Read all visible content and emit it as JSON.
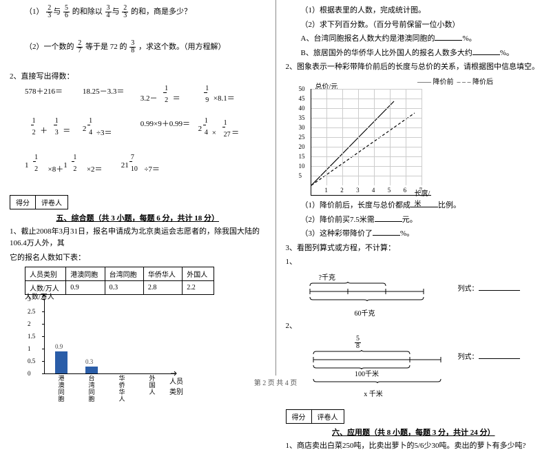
{
  "left": {
    "q1": {
      "pre": "（1）",
      "a": "2",
      "b": "3",
      "c": "5",
      "d": "6",
      "mid": "的和除以",
      "e": "3",
      "f": "4",
      "g": "2",
      "h": "3",
      "post": "的和，商是多少？"
    },
    "q2": {
      "pre": "（2）一个数的",
      "a": "2",
      "b": "7",
      "mid": "等于是 72 的",
      "c": "3",
      "d": "8",
      "post": "，求这个数。（用方程解）"
    },
    "calc_title": "2、直接写出得数：",
    "calc1": [
      "578＋216＝",
      "18.25－3.3＝",
      "3.2－",
      "×8.1＝"
    ],
    "calc1_frac1": {
      "n": "1",
      "d": "2"
    },
    "calc1_frac2": {
      "n": "1",
      "d": "9"
    },
    "calc2_a": {
      "n": "1",
      "d": "2"
    },
    "calc2_b": {
      "n": "1",
      "d": "3"
    },
    "calc2_c": {
      "w": "2",
      "n": "1",
      "d": "4"
    },
    "calc2_d": "0.99×9＋0.99＝",
    "calc2_e": {
      "w": "2",
      "n": "1",
      "d": "4"
    },
    "calc2_f": {
      "n": "1",
      "d": "27"
    },
    "calc3_a": {
      "w": "1",
      "n": "1",
      "d": "2"
    },
    "calc3_b": {
      "w": "1",
      "n": "1",
      "d": "2"
    },
    "calc3_c": {
      "w": "21",
      "n": "7",
      "d": "10"
    },
    "score": [
      "得分",
      "评卷人"
    ],
    "sect5": "五、综合题（共 3 小题，每题 6 分，共计 18 分）",
    "p1a": "1、截止2008年3月31日，报名申请成为北京奥运会志愿者的，除我国大陆的106.4万人外，其",
    "p1b": "它的报名人数如下表：",
    "table": {
      "h": [
        "人员类别",
        "港澳同胞",
        "台湾同胞",
        "华侨华人",
        "外国人"
      ],
      "r": [
        "人数/万人",
        "0.9",
        "0.3",
        "2.8",
        "2.2"
      ]
    },
    "chart": {
      "ylabel": "人数/万人",
      "xlabel": "人员类别",
      "yticks": [
        "0",
        "0.5",
        "1",
        "1.5",
        "2",
        "2.5",
        "3"
      ],
      "cats": [
        "港澳同胞",
        "台湾同胞",
        "华侨华人",
        "外国人"
      ],
      "vals": [
        0.9,
        0.3,
        0,
        0
      ],
      "bar_color": "#2a5da8",
      "val_labels": [
        "0.9",
        "0.3"
      ]
    }
  },
  "right": {
    "r1": "（1）根据表里的人数，完成统计图。",
    "r2": "（2）求下列百分数。（百分号前保留一位小数）",
    "rA": "A、台湾同胞报名人数大约是港澳同胞的",
    "rB": "B、旅居国外的华侨华人比外国人的报名人数多大约",
    "pct": "%。",
    "r3": "2、图象表示一种彩带降价前后的长度与总价的关系，请根据图中信息填空。",
    "legend": [
      "降价前",
      "降价后"
    ],
    "ylab": "总价/元",
    "xlab": "长度/米",
    "yticks": [
      "5",
      "10",
      "15",
      "20",
      "25",
      "30",
      "35",
      "40",
      "45",
      "50"
    ],
    "xticks": [
      "1",
      "2",
      "3",
      "4",
      "5",
      "6",
      "7"
    ],
    "f1": "（1）降价前后，长度与总价都成",
    "f1b": "比例。",
    "f2": "（2）降价前买7.5米需",
    "f2b": "元。",
    "f3": "（3）这种彩带降价了",
    "f3b": "%。",
    "q3": "3、看图列算式或方程，不计算：",
    "d1_top": "?千克",
    "d1_bot": "60千克",
    "d1_eq": "列式：",
    "d2_top_n": "5",
    "d2_top_d": "8",
    "d2_mid": "100千米",
    "d2_bot": "x 千米",
    "d2_eq": "列式：",
    "sect6": "六、应用题（共 8 小题，每题 3 分，共计 24 分）",
    "a1": "1、商店卖出白菜250吨，比卖出萝卜的5/6少30吨。卖出的萝卜有多少吨?"
  },
  "footer": "第 2 页 共 4 页"
}
